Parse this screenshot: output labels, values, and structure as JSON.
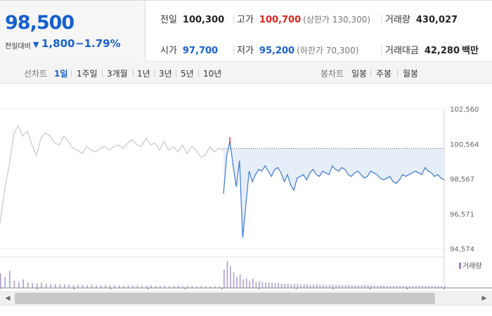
{
  "quote": {
    "current_price": "98,500",
    "change_label": "전일대비",
    "change_value": "1,800",
    "change_rate": "−1.79%",
    "prev_close": {
      "label": "전일",
      "value": "100,300"
    },
    "high": {
      "label": "고가",
      "value": "100,700",
      "note": "(상한가 130,300)"
    },
    "volume": {
      "label": "거래량",
      "value": "430,027"
    },
    "open": {
      "label": "시가",
      "value": "97,700"
    },
    "low": {
      "label": "저가",
      "value": "95,200",
      "note": "(하한가 70,300)"
    },
    "turnover": {
      "label": "거래대금",
      "value": "42,280",
      "unit": "백만"
    }
  },
  "range_tabs": {
    "label": "선차트",
    "items": [
      "1일",
      "1주일",
      "3개월",
      "1년",
      "3년",
      "5년",
      "10년"
    ],
    "active": "1일"
  },
  "candle_tabs": {
    "label": "봉차트",
    "items": [
      "일봉",
      "주봉",
      "월봉"
    ]
  },
  "colors": {
    "down": "#1660d0",
    "up": "#e0221d",
    "today_line": "#3a78d4",
    "prev_day_line": "#c8c8c8",
    "fill": "#e6eefa",
    "volume_bar": "#9a86c0"
  },
  "chart_data": {
    "type": "line",
    "y_ticks": [
      "102,560",
      "100,564",
      "98,567",
      "96,571",
      "94,574"
    ],
    "ylim": [
      94574,
      102560
    ],
    "reference_price": 100300,
    "volume_legend": "거래량",
    "series": [
      {
        "values": [
          96000,
          97900,
          99300,
          101100,
          101600,
          101000,
          101300,
          100500,
          99900,
          100900,
          101200,
          101000,
          100600,
          100500,
          101000,
          100700,
          100300,
          100200,
          100000,
          100400,
          100200,
          100100,
          100300,
          100400,
          100200,
          100400,
          100500,
          100300,
          100600,
          100800,
          100500,
          100400,
          100900,
          100500,
          100600,
          100200,
          100700,
          100200,
          100400,
          100100,
          100500,
          100000,
          100400,
          100200,
          99800,
          99900,
          100400,
          100100,
          100300,
          100200
        ]
      },
      {
        "values": [
          97700,
          99900,
          100700,
          99300,
          98100,
          99600,
          95200,
          97100,
          99000,
          98400,
          98800,
          99100,
          99000,
          99300,
          99000,
          98700,
          99100,
          99200,
          98900,
          98400,
          98800,
          98200,
          97900,
          98600,
          98700,
          98800,
          98500,
          98900,
          99100,
          98800,
          98700,
          99000,
          98900,
          98800,
          99300,
          99100,
          99000,
          99200,
          99100,
          98800,
          98700,
          98900,
          99000,
          98800,
          98600,
          98700,
          99000,
          98900,
          98800,
          98600,
          98500,
          98600,
          98700,
          98400,
          98300,
          98500,
          98800,
          98700,
          98800,
          98900,
          99000,
          98900,
          98800,
          99200,
          99000,
          98900,
          98700,
          98800,
          98600,
          98500
        ]
      }
    ],
    "volume": [
      [
        1200,
        900,
        1400,
        600,
        500,
        700,
        450,
        400,
        380,
        420,
        350,
        300,
        320,
        280,
        300,
        260,
        240,
        280,
        230,
        220,
        250,
        200,
        210,
        230,
        190,
        200,
        220,
        180,
        200,
        190,
        210,
        170,
        180,
        200,
        160,
        170,
        190,
        150,
        160,
        180,
        140,
        170,
        150,
        130,
        160,
        140,
        120,
        150,
        130,
        140
      ],
      [
        1500,
        2200,
        1800,
        1300,
        900,
        1100,
        700,
        800,
        600,
        750,
        500,
        550,
        480,
        420,
        460,
        400,
        380,
        420,
        350,
        330,
        360,
        300,
        320,
        340,
        280,
        300,
        320,
        260,
        280,
        300,
        250,
        270,
        240,
        260,
        280,
        230,
        250,
        220,
        240,
        260,
        210,
        230,
        200,
        220,
        240,
        190,
        210,
        230,
        180,
        200,
        220,
        170,
        190,
        210,
        160,
        180,
        200,
        150,
        170,
        190,
        160,
        180,
        150,
        170,
        160,
        150,
        170,
        140,
        160,
        150
      ]
    ]
  },
  "scrollbar": {
    "left_arrow": "◀",
    "right_arrow": "▶"
  }
}
